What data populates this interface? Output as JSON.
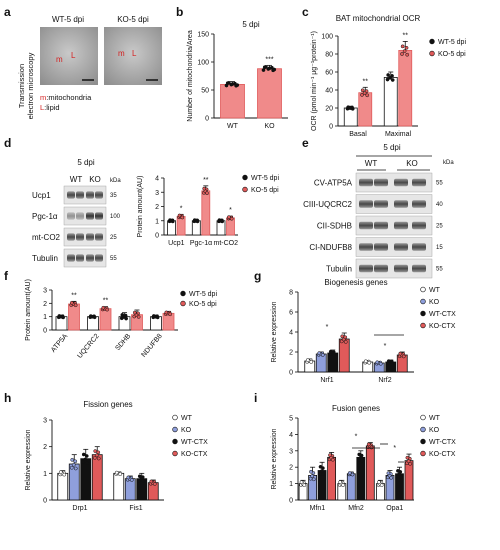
{
  "colors": {
    "red": "#e05a5a",
    "red_face": "#f08a8a",
    "blue": "#8f9fdc",
    "black": "#111111",
    "white": "#ffffff",
    "grid": "#cccccc"
  },
  "panels": {
    "a": {
      "letter": "a",
      "title_left": "WT-5 dpi",
      "title_right": "KO-5 dpi",
      "side_label_1": "Transmission",
      "side_label_2": "electron microscopy",
      "marker_m": "m",
      "marker_l": "L",
      "key_m_prefix": "m",
      "key_m_text": ":mitochondria",
      "key_l_prefix": "L",
      "key_l_text": ":lipid"
    },
    "b": {
      "letter": "b"
    },
    "c": {
      "letter": "c"
    },
    "d": {
      "letter": "d",
      "blot_title": "5 dpi",
      "lane_1": "WT",
      "lane_2": "KO",
      "kda": "kDa",
      "rows": [
        {
          "name": "Ucp1",
          "kda": "35"
        },
        {
          "name": "Pgc-1α",
          "kda": "100"
        },
        {
          "name": "mt-CO2",
          "kda": "25"
        },
        {
          "name": "Tubulin",
          "kda": "55"
        }
      ]
    },
    "e": {
      "letter": "e",
      "blot_title": "5 dpi",
      "lane_1": "WT",
      "lane_2": "KO",
      "kda": "kDa",
      "rows": [
        {
          "name": "CV-ATP5A",
          "kda": "55"
        },
        {
          "name": "CIII-UQCRC2",
          "kda": "40"
        },
        {
          "name": "CII-SDHB",
          "kda": "25"
        },
        {
          "name": "CI-NDUFB8",
          "kda": "15"
        },
        {
          "name": "Tubulin",
          "kda": "55"
        }
      ]
    },
    "f": {
      "letter": "f"
    },
    "g": {
      "letter": "g"
    },
    "h": {
      "letter": "h"
    },
    "i": {
      "letter": "i"
    }
  },
  "chart_data": [
    {
      "panel": "b",
      "type": "bar",
      "title": "5 dpi",
      "ylabel": "Number of mitochondria/Area",
      "ylim": [
        0,
        150
      ],
      "yticks": [
        "0",
        "50",
        "100",
        "150"
      ],
      "categories": [
        "WT",
        "KO"
      ],
      "series": [
        {
          "values": [
            60,
            88
          ],
          "errors": [
            5,
            6
          ]
        }
      ],
      "significance": [
        "",
        "***"
      ]
    },
    {
      "panel": "c",
      "type": "bar",
      "title": "BAT mitochondrial OCR",
      "ylabel": "OCR (pmol min⁻¹ μg⁻¹protein⁻¹)",
      "ylim": [
        0,
        100
      ],
      "yticks": [
        "0",
        "20",
        "40",
        "60",
        "80",
        "100"
      ],
      "categories": [
        "Basal",
        "Maximal"
      ],
      "series": [
        {
          "name": "WT-5 dpi",
          "values": [
            20,
            54
          ],
          "errors": [
            2,
            6
          ]
        },
        {
          "name": "KO-5 dpi",
          "values": [
            37,
            84
          ],
          "errors": [
            6,
            10
          ]
        }
      ],
      "significance": [
        "**",
        "**"
      ]
    },
    {
      "panel": "d",
      "type": "bar",
      "ylabel": "Protein amount(AU)",
      "ylim": [
        0,
        4
      ],
      "yticks": [
        "0",
        "1",
        "2",
        "3",
        "4"
      ],
      "categories": [
        "Ucp1",
        "Pgc-1α",
        "mt-CO2"
      ],
      "series": [
        {
          "name": "WT-5 dpi",
          "values": [
            1.0,
            1.0,
            1.0
          ],
          "errors": [
            0.1,
            0.1,
            0.1
          ]
        },
        {
          "name": "KO-5 dpi",
          "values": [
            1.3,
            3.1,
            1.2
          ],
          "errors": [
            0.15,
            0.35,
            0.12
          ]
        }
      ],
      "significance": [
        "*",
        "**",
        "*"
      ]
    },
    {
      "panel": "f",
      "type": "bar",
      "ylabel": "Protein amount(AU)",
      "ylim": [
        0,
        3
      ],
      "yticks": [
        "0",
        "1",
        "2",
        "3"
      ],
      "categories": [
        "ATP5A",
        "UQCRC2",
        "SDHB",
        "NDUFB8"
      ],
      "series": [
        {
          "name": "WT-5 dpi",
          "values": [
            1.0,
            1.0,
            1.0,
            1.0
          ],
          "errors": [
            0.12,
            0.1,
            0.3,
            0.12
          ]
        },
        {
          "name": "KO-5 dpi",
          "values": [
            1.95,
            1.6,
            1.15,
            1.25
          ],
          "errors": [
            0.2,
            0.15,
            0.35,
            0.15
          ]
        }
      ],
      "significance": [
        "**",
        "**",
        "",
        ""
      ]
    },
    {
      "panel": "g",
      "type": "bar",
      "title": "Biogenesis genes",
      "ylabel": "Relative expression",
      "ylim": [
        0,
        8
      ],
      "yticks": [
        "0",
        "2",
        "4",
        "6",
        "8"
      ],
      "categories": [
        "Nrf1",
        "Nrf2"
      ],
      "series": [
        {
          "name": "WT",
          "values": [
            1.1,
            1.0
          ],
          "errors": [
            0.2,
            0.1
          ]
        },
        {
          "name": "KO",
          "values": [
            1.8,
            0.9
          ],
          "errors": [
            0.2,
            0.1
          ]
        },
        {
          "name": "WT-CTX",
          "values": [
            1.9,
            1.0
          ],
          "errors": [
            0.3,
            0.2
          ]
        },
        {
          "name": "KO-CTX",
          "values": [
            3.3,
            1.7
          ],
          "errors": [
            0.6,
            0.3
          ]
        }
      ],
      "significance": [
        "*",
        "*"
      ]
    },
    {
      "panel": "h",
      "type": "bar",
      "title": "Fission genes",
      "ylabel": "Relative expression",
      "ylim": [
        0,
        3
      ],
      "yticks": [
        "0",
        "1",
        "2",
        "3"
      ],
      "categories": [
        "Drp1",
        "Fis1"
      ],
      "series": [
        {
          "name": "WT",
          "values": [
            1.0,
            1.0
          ],
          "errors": [
            0.1,
            0.05
          ]
        },
        {
          "name": "KO",
          "values": [
            1.35,
            0.8
          ],
          "errors": [
            0.35,
            0.1
          ]
        },
        {
          "name": "WT-CTX",
          "values": [
            1.55,
            0.8
          ],
          "errors": [
            0.35,
            0.2
          ]
        },
        {
          "name": "KO-CTX",
          "values": [
            1.7,
            0.65
          ],
          "errors": [
            0.3,
            0.1
          ]
        }
      ],
      "significance": [
        "",
        ""
      ]
    },
    {
      "panel": "i",
      "type": "bar",
      "title": "Fusion genes",
      "ylabel": "Relative expression",
      "ylim": [
        0,
        5
      ],
      "yticks": [
        "0",
        "1",
        "2",
        "3",
        "4",
        "5"
      ],
      "categories": [
        "Mfn1",
        "Mfn2",
        "Opa1"
      ],
      "series": [
        {
          "name": "WT",
          "values": [
            1.0,
            1.0,
            1.0
          ],
          "errors": [
            0.2,
            0.2,
            0.2
          ]
        },
        {
          "name": "KO",
          "values": [
            1.5,
            1.6,
            1.5
          ],
          "errors": [
            0.5,
            0.1,
            0.3
          ]
        },
        {
          "name": "WT-CTX",
          "values": [
            1.8,
            2.6,
            1.6
          ],
          "errors": [
            0.5,
            0.4,
            0.4
          ]
        },
        {
          "name": "KO-CTX",
          "values": [
            2.6,
            3.3,
            2.4
          ],
          "errors": [
            0.3,
            0.2,
            0.4
          ]
        }
      ],
      "significance": [
        "",
        "*",
        "*"
      ]
    }
  ]
}
